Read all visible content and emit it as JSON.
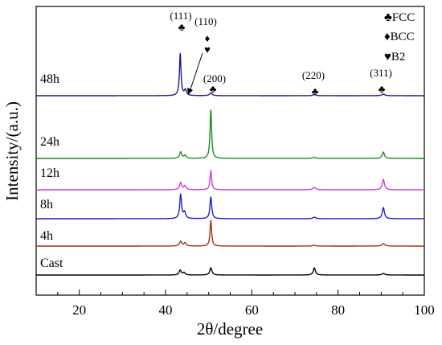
{
  "chart_data": {
    "type": "line",
    "xlabel": "2θ/degree",
    "ylabel": "Intensity/(a.u.)",
    "xlim": [
      10,
      100
    ],
    "x_ticks": [
      "20",
      "40",
      "60",
      "80",
      "100"
    ],
    "grid": false,
    "legend_position": "top-right",
    "legend": [
      {
        "symbol": "♣",
        "label": "FCC"
      },
      {
        "symbol": "♦",
        "label": "BCC"
      },
      {
        "symbol": "♥",
        "label": "B2"
      }
    ],
    "peak_annotations": [
      {
        "label": "(111)",
        "x": 43.5,
        "symbol": "♣"
      },
      {
        "label": "(110)",
        "x": 44.5,
        "symbol": "♦♥"
      },
      {
        "label": "(200)",
        "x": 50.5,
        "symbol": "♣"
      },
      {
        "label": "(220)",
        "x": 74.5,
        "symbol": "♣"
      },
      {
        "label": "(311)",
        "x": 90.5,
        "symbol": "♣"
      }
    ],
    "series": [
      {
        "name": "48h",
        "color": "#1a1a8c",
        "peaks": [
          {
            "x": 43.4,
            "h": 52,
            "w": 0.22
          },
          {
            "x": 44.6,
            "h": 7,
            "w": 0.3
          },
          {
            "x": 50.5,
            "h": 3,
            "w": 0.4
          },
          {
            "x": 74.5,
            "h": 1.5,
            "w": 0.4
          },
          {
            "x": 90.5,
            "h": 2,
            "w": 0.4
          }
        ]
      },
      {
        "name": "24h",
        "color": "#1f8a1f",
        "peaks": [
          {
            "x": 43.5,
            "h": 8,
            "w": 0.28
          },
          {
            "x": 44.5,
            "h": 4,
            "w": 0.3
          },
          {
            "x": 50.5,
            "h": 60,
            "w": 0.22
          },
          {
            "x": 74.5,
            "h": 1.5,
            "w": 0.4
          },
          {
            "x": 90.5,
            "h": 8,
            "w": 0.3
          }
        ]
      },
      {
        "name": "12h",
        "color": "#cc3fd9",
        "peaks": [
          {
            "x": 43.5,
            "h": 9,
            "w": 0.28
          },
          {
            "x": 44.5,
            "h": 5,
            "w": 0.3
          },
          {
            "x": 50.5,
            "h": 24,
            "w": 0.22
          },
          {
            "x": 74.5,
            "h": 3,
            "w": 0.4
          },
          {
            "x": 90.5,
            "h": 13,
            "w": 0.3
          }
        ]
      },
      {
        "name": "8h",
        "color": "#1f1fd0",
        "peaks": [
          {
            "x": 43.5,
            "h": 30,
            "w": 0.25
          },
          {
            "x": 44.4,
            "h": 8,
            "w": 0.3
          },
          {
            "x": 50.5,
            "h": 27,
            "w": 0.25
          },
          {
            "x": 74.5,
            "h": 2,
            "w": 0.4
          },
          {
            "x": 90.5,
            "h": 14,
            "w": 0.3
          }
        ]
      },
      {
        "name": "4h",
        "color": "#a3320e",
        "peaks": [
          {
            "x": 43.5,
            "h": 6,
            "w": 0.3
          },
          {
            "x": 44.5,
            "h": 4,
            "w": 0.3
          },
          {
            "x": 50.5,
            "h": 32,
            "w": 0.22
          },
          {
            "x": 74.5,
            "h": 1,
            "w": 0.4
          },
          {
            "x": 90.5,
            "h": 3,
            "w": 0.4
          }
        ]
      },
      {
        "name": "Cast",
        "color": "#000000",
        "peaks": [
          {
            "x": 43.4,
            "h": 6,
            "w": 0.3
          },
          {
            "x": 44.3,
            "h": 3,
            "w": 0.3
          },
          {
            "x": 50.5,
            "h": 9,
            "w": 0.3
          },
          {
            "x": 74.5,
            "h": 9,
            "w": 0.3
          },
          {
            "x": 90.5,
            "h": 2,
            "w": 0.4
          }
        ]
      }
    ]
  }
}
